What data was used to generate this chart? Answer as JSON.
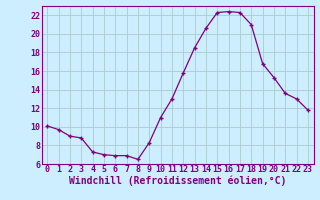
{
  "x": [
    0,
    1,
    2,
    3,
    4,
    5,
    6,
    7,
    8,
    9,
    10,
    11,
    12,
    13,
    14,
    15,
    16,
    17,
    18,
    19,
    20,
    21,
    22,
    23
  ],
  "y": [
    10.1,
    9.7,
    9.0,
    8.8,
    7.3,
    7.0,
    6.9,
    6.9,
    6.5,
    8.3,
    11.0,
    13.0,
    15.8,
    18.5,
    20.6,
    22.3,
    22.4,
    22.3,
    21.0,
    16.8,
    15.3,
    13.6,
    13.0,
    11.8
  ],
  "line_color": "#800080",
  "marker": "+",
  "bg_color": "#cceeff",
  "grid_color": "#aacccc",
  "xlabel": "Windchill (Refroidissement éolien,°C)",
  "xlim": [
    -0.5,
    23.5
  ],
  "ylim": [
    6,
    23
  ],
  "yticks": [
    6,
    8,
    10,
    12,
    14,
    16,
    18,
    20,
    22
  ],
  "xticks": [
    0,
    1,
    2,
    3,
    4,
    5,
    6,
    7,
    8,
    9,
    10,
    11,
    12,
    13,
    14,
    15,
    16,
    17,
    18,
    19,
    20,
    21,
    22,
    23
  ],
  "tick_fontsize": 6.0,
  "xlabel_fontsize": 7.0,
  "spine_color": "#800080"
}
